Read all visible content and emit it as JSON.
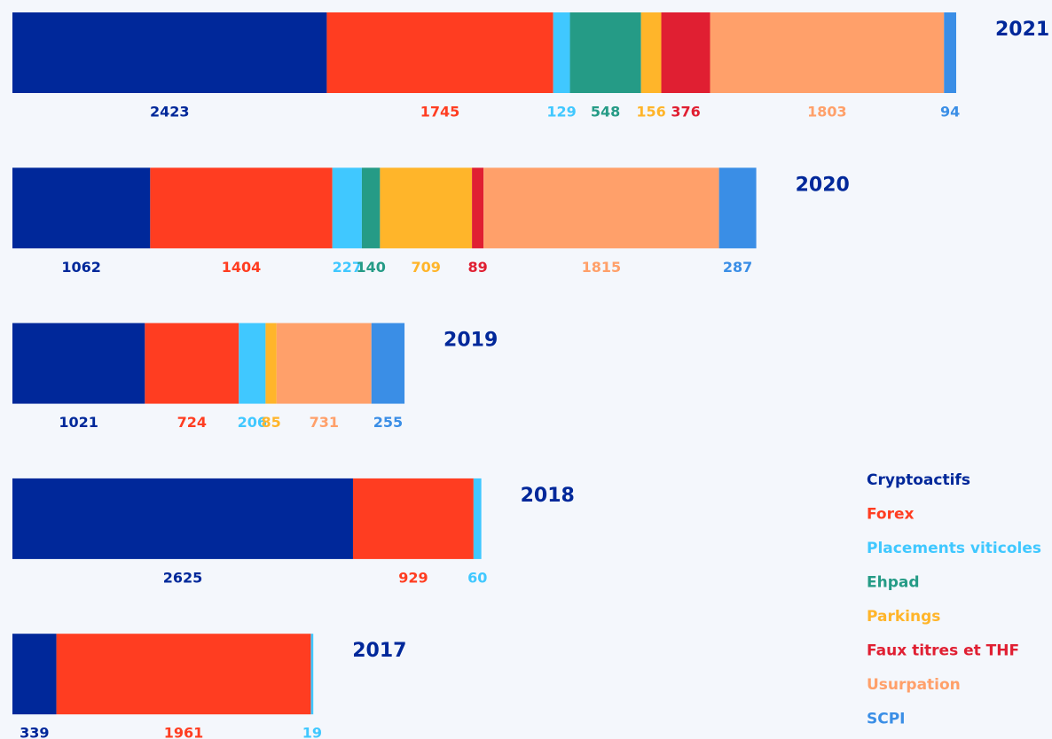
{
  "chart_data": {
    "type": "stacked-bar-horizontal",
    "categories": [
      "2021",
      "2020",
      "2019",
      "2018",
      "2017"
    ],
    "series": [
      {
        "name": "Cryptoactifs",
        "color": "#00289a",
        "values": [
          2423,
          1062,
          1021,
          2625,
          339
        ]
      },
      {
        "name": "Forex",
        "color": "#ff3d21",
        "values": [
          1745,
          1404,
          724,
          929,
          1961
        ]
      },
      {
        "name": "Placements viticoles",
        "color": "#40c8ff",
        "values": [
          129,
          227,
          206,
          60,
          19
        ]
      },
      {
        "name": "Ehpad",
        "color": "#259b86",
        "values": [
          548,
          140,
          null,
          null,
          null
        ]
      },
      {
        "name": "Parkings",
        "color": "#ffb52a",
        "values": [
          156,
          709,
          85,
          null,
          null
        ]
      },
      {
        "name": "Faux titres et THF",
        "color": "#e01f32",
        "values": [
          376,
          89,
          null,
          null,
          null
        ]
      },
      {
        "name": "Usurpation",
        "color": "#ffa06a",
        "values": [
          1803,
          1815,
          731,
          null,
          null
        ]
      },
      {
        "name": "SCPI",
        "color": "#3a8ee6",
        "values": [
          94,
          287,
          255,
          null,
          null
        ]
      }
    ],
    "legend": "bottom-right"
  }
}
